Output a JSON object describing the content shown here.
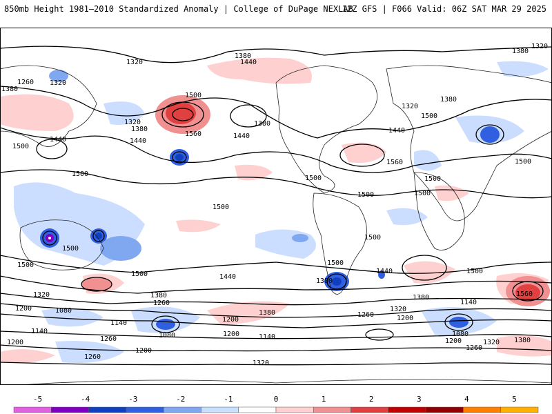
{
  "header": {
    "title": "850mb Height 1981–2010 Standardized Anomaly | College of DuPage NEXLAB",
    "run_info": "12Z GFS | F066 Valid: 06Z SAT MAR 29 2025"
  },
  "colorbar": {
    "ticks": [
      "-5",
      "-4",
      "-3",
      "-2",
      "-1",
      "0",
      "1",
      "2",
      "3",
      "4",
      "5"
    ],
    "colors": [
      "#e060e0",
      "#8000c0",
      "#1040c0",
      "#3060e0",
      "#80a8f0",
      "#c8e0ff",
      "#ffffff",
      "#ffd0d0",
      "#f09090",
      "#e04040",
      "#c00000",
      "#900000",
      "#ff8000",
      "#ffb000"
    ]
  },
  "contour_labels": [
    {
      "text": "1320"
    },
    {
      "text": "1260"
    },
    {
      "text": "1320"
    },
    {
      "text": "1380"
    },
    {
      "text": "1380"
    },
    {
      "text": "1440"
    },
    {
      "text": "1500"
    },
    {
      "text": "1560"
    },
    {
      "text": "1320"
    },
    {
      "text": "1380"
    },
    {
      "text": "1440"
    },
    {
      "text": "1440"
    },
    {
      "text": "1380"
    },
    {
      "text": "1440"
    },
    {
      "text": "1500"
    },
    {
      "text": "1500"
    },
    {
      "text": "1500"
    },
    {
      "text": "1560"
    },
    {
      "text": "1320"
    },
    {
      "text": "1380"
    },
    {
      "text": "1500"
    },
    {
      "text": "1440"
    },
    {
      "text": "1380"
    },
    {
      "text": "1500"
    },
    {
      "text": "1500"
    },
    {
      "text": "1500"
    },
    {
      "text": "1500"
    },
    {
      "text": "1500"
    },
    {
      "text": "1500"
    },
    {
      "text": "1500"
    },
    {
      "text": "1500"
    },
    {
      "text": "1440"
    },
    {
      "text": "1500"
    },
    {
      "text": "1380"
    },
    {
      "text": "1260"
    },
    {
      "text": "1320"
    },
    {
      "text": "1200"
    },
    {
      "text": "1080"
    },
    {
      "text": "1140"
    },
    {
      "text": "1260"
    },
    {
      "text": "1200"
    },
    {
      "text": "1140"
    },
    {
      "text": "1080"
    },
    {
      "text": "1200"
    },
    {
      "text": "1500"
    },
    {
      "text": "1380"
    },
    {
      "text": "1320"
    },
    {
      "text": "1380"
    },
    {
      "text": "1200"
    },
    {
      "text": "1260"
    },
    {
      "text": "1140"
    },
    {
      "text": "1140"
    },
    {
      "text": "1200"
    },
    {
      "text": "1080"
    },
    {
      "text": "1200"
    },
    {
      "text": "1260"
    },
    {
      "text": "1320"
    },
    {
      "text": "1380"
    },
    {
      "text": "1560"
    },
    {
      "text": "1440"
    },
    {
      "text": "1200"
    },
    {
      "text": "1260"
    },
    {
      "text": "1320"
    },
    {
      "text": "1380"
    },
    {
      "text": "1500"
    },
    {
      "text": "1320"
    }
  ]
}
